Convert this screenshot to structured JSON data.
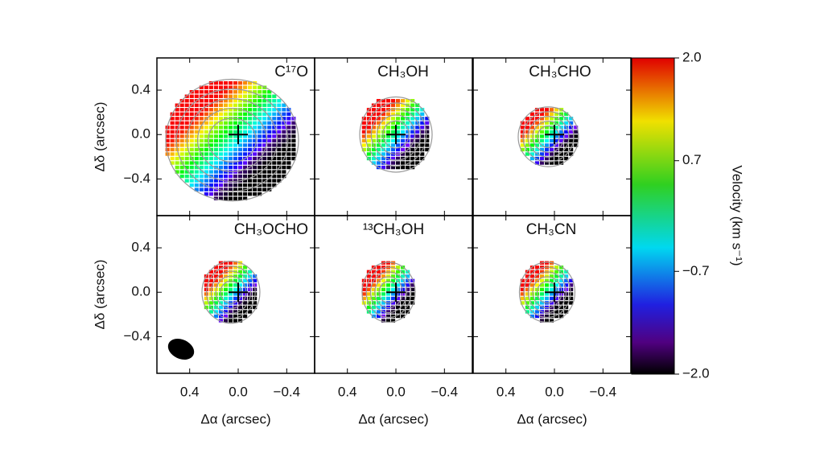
{
  "chart_data": {
    "type": "velocity-map",
    "panels": [
      {
        "title": "C¹⁷O"
      },
      {
        "title": "CH₃OH"
      },
      {
        "title": "CH₃CHO"
      },
      {
        "title": "CH₃OCHO"
      },
      {
        "title": "¹³CH₃OH"
      },
      {
        "title": "CH₃CN"
      }
    ],
    "xlabel": "Δα (arcsec)",
    "ylabel": "Δδ (arcsec)",
    "xlim": [
      0.67,
      -0.63
    ],
    "xticks": [
      0.4,
      {
        "value": 0.0,
        "label": "0.0"
      },
      {
        "value": -0.4,
        "label": "−0.4"
      }
    ],
    "ylim": [
      -0.73,
      0.69
    ],
    "yticks": [
      0.4,
      {
        "value": 0.0,
        "label": "0.0"
      },
      {
        "value": -0.4,
        "label": "−0.4"
      }
    ],
    "colorbar": {
      "label": "Velocity (km s⁻¹)",
      "lim": [
        -2.0,
        2.0
      ],
      "ticks": [
        {
          "value": 2.0,
          "label": "2.0"
        },
        0.7,
        {
          "value": -0.7,
          "label": "−0.7"
        },
        {
          "value": -2.0,
          "label": "−2.0"
        }
      ]
    }
  }
}
